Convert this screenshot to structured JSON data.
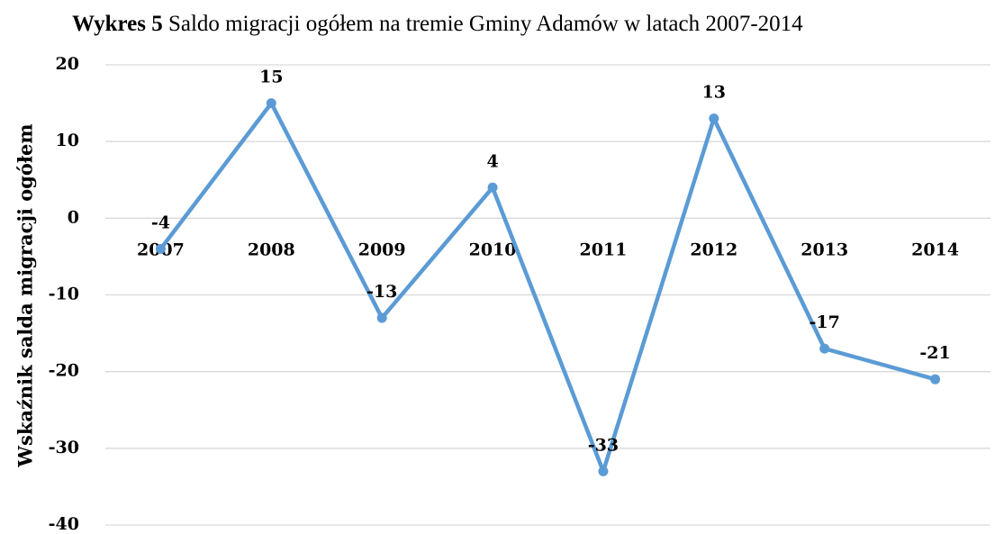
{
  "chart_data": {
    "type": "line",
    "title": [
      "Wykres 5",
      "Saldo migracji ogółem na tremie Gminy Adamów w latach 2007-2014"
    ],
    "y_label": "Wskaźnik salda migracji ogółem",
    "categories": [
      "2007",
      "2008",
      "2009",
      "2010",
      "2011",
      "2012",
      "2013",
      "2014"
    ],
    "values": [
      -4,
      15,
      -13,
      4,
      -33,
      13,
      -17,
      -21
    ],
    "color": "#5b9bd5",
    "ylim": [
      -40,
      20
    ],
    "yticks": [
      -40,
      -30,
      -20,
      -10,
      0,
      10,
      20
    ],
    "grid": true
  }
}
